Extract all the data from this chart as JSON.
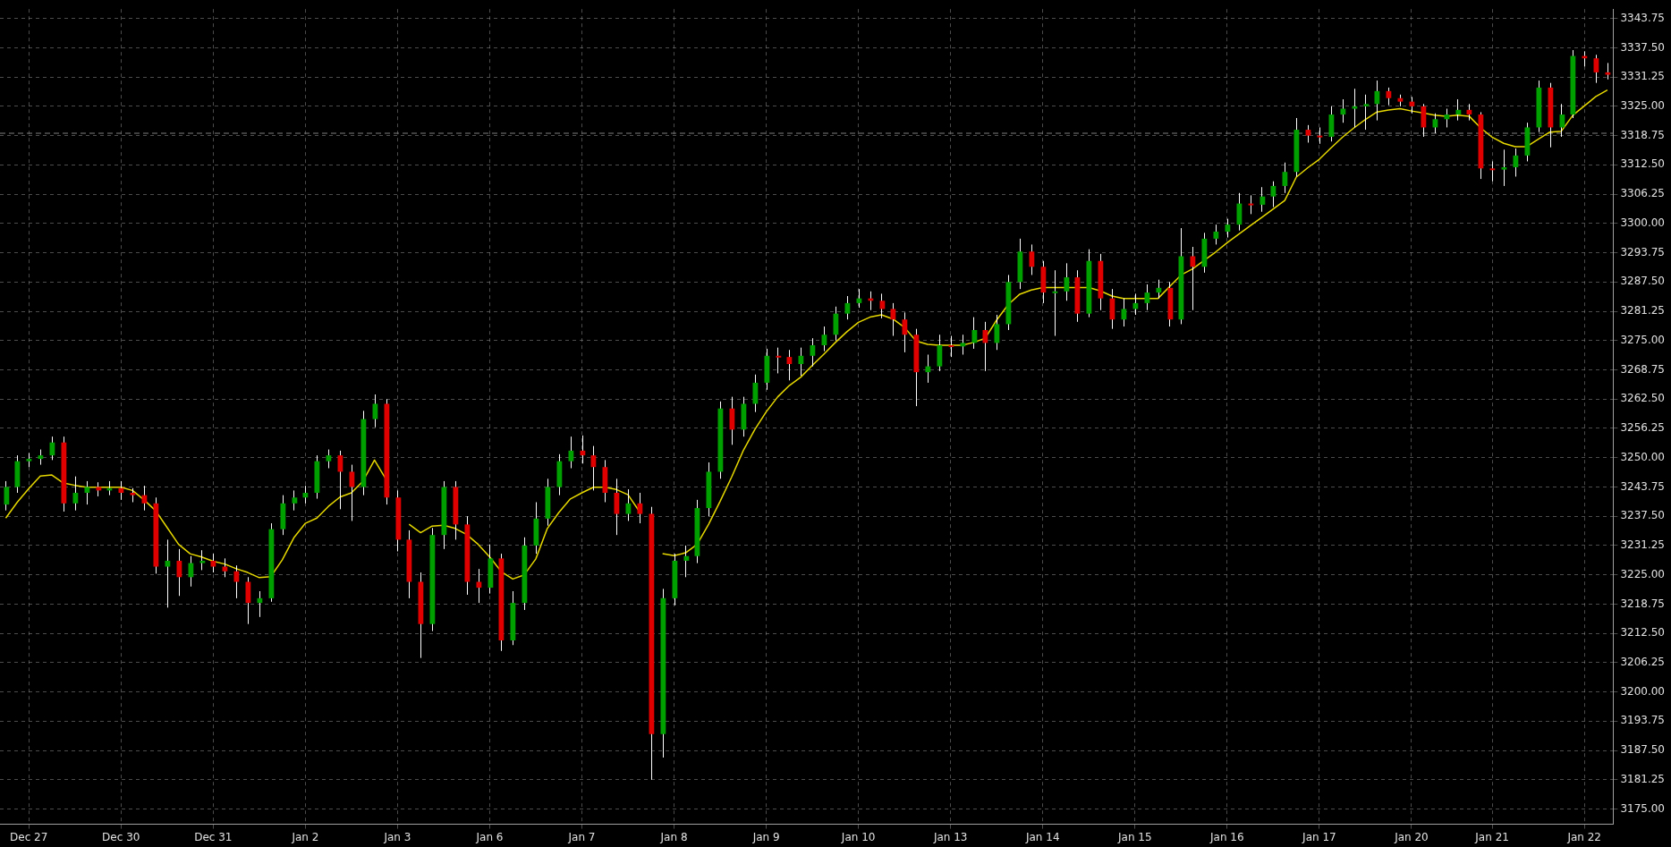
{
  "chart_data": {
    "type": "candlestick",
    "categories": [
      null,
      null,
      "Dec 27",
      null,
      null,
      null,
      null,
      null,
      null,
      null,
      "Dec 30",
      null,
      null,
      null,
      null,
      null,
      null,
      null,
      "Dec 31",
      null,
      null,
      null,
      null,
      null,
      null,
      null,
      "Jan 2",
      null,
      null,
      null,
      null,
      null,
      null,
      null,
      "Jan 3",
      null,
      null,
      null,
      null,
      null,
      null,
      null,
      "Jan 6",
      null,
      null,
      null,
      null,
      null,
      null,
      null,
      "Jan 7",
      null,
      null,
      null,
      null,
      null,
      null,
      null,
      "Jan 8",
      null,
      null,
      null,
      null,
      null,
      null,
      null,
      "Jan 9",
      null,
      null,
      null,
      null,
      null,
      null,
      null,
      "Jan 10",
      null,
      null,
      null,
      null,
      null,
      null,
      null,
      "Jan 13",
      null,
      null,
      null,
      null,
      null,
      null,
      null,
      "Jan 14",
      null,
      null,
      null,
      null,
      null,
      null,
      null,
      "Jan 15",
      null,
      null,
      null,
      null,
      null,
      null,
      null,
      "Jan 16",
      null,
      null,
      null,
      null,
      null,
      null,
      null,
      "Jan 17",
      null,
      null,
      null,
      null,
      null,
      null,
      null,
      "Jan 20",
      null,
      null,
      null,
      null,
      null,
      null,
      "Jan 21",
      null,
      null,
      null,
      null,
      null,
      null,
      null,
      "Jan 22",
      null,
      null
    ],
    "ohlc": [
      [
        3240,
        3245,
        3238.75,
        3243.75
      ],
      [
        3243.75,
        3250.5,
        3242.5,
        3249.25
      ],
      [
        3249.25,
        3251,
        3248,
        3249.75
      ],
      [
        3249.75,
        3251.75,
        3248.5,
        3250.5
      ],
      [
        3250.5,
        3254.5,
        3249.5,
        3253.25
      ],
      [
        3253.25,
        3254.5,
        3238.5,
        3240.25
      ],
      [
        3240.25,
        3246,
        3238.75,
        3242.5
      ],
      [
        3242.5,
        3245,
        3240,
        3243.75
      ],
      [
        3243.75,
        3244.75,
        3241.75,
        3243
      ],
      [
        3243,
        3245,
        3242,
        3243.5
      ],
      [
        3243.5,
        3245,
        3241,
        3242.5
      ],
      [
        3242.5,
        3243.5,
        3240.5,
        3242
      ],
      [
        3242,
        3244,
        3238.75,
        3240.25
      ],
      [
        3240.25,
        3241.5,
        3225.25,
        3226.75
      ],
      [
        3226.75,
        3232.5,
        3218,
        3228
      ],
      [
        3228,
        3230.5,
        3220.5,
        3224.5
      ],
      [
        3224.5,
        3229,
        3222.5,
        3227.5
      ],
      [
        3227.5,
        3230.25,
        3226,
        3228
      ],
      [
        3228,
        3229.5,
        3225.5,
        3226.75
      ],
      [
        3226.75,
        3228.5,
        3224.5,
        3225.75
      ],
      [
        3225.75,
        3227,
        3220,
        3223.5
      ],
      [
        3223.5,
        3224.5,
        3214.5,
        3219
      ],
      [
        3219,
        3221.5,
        3216,
        3220
      ],
      [
        3220,
        3236,
        3219.25,
        3234.75
      ],
      [
        3234.75,
        3242,
        3233.5,
        3240.25
      ],
      [
        3240.25,
        3243,
        3238.75,
        3241.5
      ],
      [
        3241.5,
        3244,
        3240.25,
        3242.5
      ],
      [
        3242.5,
        3250.5,
        3241.25,
        3249.25
      ],
      [
        3249.25,
        3251.75,
        3247.75,
        3250.5
      ],
      [
        3250.5,
        3251.5,
        3239,
        3247
      ],
      [
        3247,
        3248.5,
        3236.5,
        3243.75
      ],
      [
        3243.75,
        3260,
        3242,
        3258.25
      ],
      [
        3258.25,
        3263.5,
        3256.5,
        3261.5
      ],
      [
        3261.5,
        3262.5,
        3240,
        3241.5
      ],
      [
        3241.5,
        3243,
        3230,
        3232.5
      ],
      [
        3232.5,
        3234.5,
        3220,
        3223.5
      ],
      [
        3223.5,
        3225.5,
        3207.25,
        3214.5
      ],
      [
        3214.5,
        3235,
        3213,
        3233.5
      ],
      [
        3233.5,
        3245,
        3230.5,
        3243.75
      ],
      [
        3243.75,
        3245,
        3232.5,
        3235.75
      ],
      [
        3235.75,
        3237.5,
        3220.75,
        3223.5
      ],
      [
        3223.5,
        3226.25,
        3219,
        3222.25
      ],
      [
        3222.25,
        3231.5,
        3221,
        3228.5
      ],
      [
        3228.5,
        3229.5,
        3208.75,
        3211
      ],
      [
        3211,
        3221.5,
        3210,
        3219
      ],
      [
        3219,
        3233,
        3217.5,
        3231.25
      ],
      [
        3231.25,
        3240.5,
        3229.5,
        3237
      ],
      [
        3237,
        3245.5,
        3235.5,
        3243.75
      ],
      [
        3243.75,
        3250.75,
        3242,
        3249.25
      ],
      [
        3249.25,
        3254.5,
        3247.75,
        3251.5
      ],
      [
        3251.5,
        3254.75,
        3248.75,
        3250.5
      ],
      [
        3250.5,
        3252.5,
        3243,
        3248
      ],
      [
        3248,
        3249.5,
        3240.5,
        3242.5
      ],
      [
        3242.5,
        3245.5,
        3233.5,
        3238
      ],
      [
        3238,
        3243.25,
        3236.5,
        3240.25
      ],
      [
        3240.25,
        3242.5,
        3236,
        3238
      ],
      [
        3238,
        3239.5,
        3181.25,
        3191
      ],
      [
        3191,
        3222,
        3186,
        3220
      ],
      [
        3220,
        3229.5,
        3218.5,
        3228
      ],
      [
        3228,
        3231.25,
        3224.5,
        3229
      ],
      [
        3229,
        3241,
        3227.5,
        3239.25
      ],
      [
        3239.25,
        3249,
        3237.5,
        3247
      ],
      [
        3247,
        3262,
        3245.5,
        3260.5
      ],
      [
        3260.5,
        3263,
        3252.75,
        3256
      ],
      [
        3256,
        3263,
        3254.5,
        3261.5
      ],
      [
        3261.5,
        3267.75,
        3259.75,
        3266
      ],
      [
        3266,
        3273.25,
        3264.5,
        3271.75
      ],
      [
        3271.75,
        3273.5,
        3268,
        3271.5
      ],
      [
        3271.5,
        3273,
        3266.5,
        3270
      ],
      [
        3270,
        3273.5,
        3267.5,
        3271.75
      ],
      [
        3271.75,
        3275.5,
        3269.5,
        3274
      ],
      [
        3274,
        3278,
        3272.75,
        3276.25
      ],
      [
        3276.25,
        3282.25,
        3275,
        3280.75
      ],
      [
        3280.75,
        3284.5,
        3279.5,
        3283
      ],
      [
        3283,
        3286,
        3282,
        3284
      ],
      [
        3284,
        3285.5,
        3281.5,
        3283.5
      ],
      [
        3283.5,
        3285,
        3279.75,
        3281.75
      ],
      [
        3281.75,
        3283,
        3276,
        3279.5
      ],
      [
        3279.5,
        3281,
        3272.5,
        3276.25
      ],
      [
        3276.25,
        3277.5,
        3261,
        3268.25
      ],
      [
        3268.25,
        3272,
        3266,
        3269.5
      ],
      [
        3269.5,
        3276.25,
        3268.5,
        3274
      ],
      [
        3274,
        3276,
        3271.5,
        3273.75
      ],
      [
        3273.75,
        3276.25,
        3272,
        3274.5
      ],
      [
        3274.5,
        3280,
        3273.25,
        3277.25
      ],
      [
        3277.25,
        3279,
        3268.5,
        3274.5
      ],
      [
        3274.5,
        3280.5,
        3273,
        3278.5
      ],
      [
        3278.5,
        3289,
        3277.25,
        3287.5
      ],
      [
        3287.5,
        3296.75,
        3286,
        3294
      ],
      [
        3294,
        3295.5,
        3289,
        3290.75
      ],
      [
        3290.75,
        3292,
        3283,
        3285.25
      ],
      [
        3285.25,
        3290,
        3276,
        3285.5
      ],
      [
        3285.5,
        3291.5,
        3283.5,
        3288.5
      ],
      [
        3288.5,
        3290,
        3279,
        3280.75
      ],
      [
        3280.75,
        3294.5,
        3280,
        3292
      ],
      [
        3292,
        3293.5,
        3281.5,
        3284
      ],
      [
        3284,
        3286,
        3277.5,
        3279.5
      ],
      [
        3279.5,
        3284,
        3278,
        3281.75
      ],
      [
        3281.75,
        3285,
        3280.5,
        3283
      ],
      [
        3283,
        3287,
        3281.5,
        3285.25
      ],
      [
        3285.25,
        3288,
        3284,
        3286.25
      ],
      [
        3286.25,
        3287.5,
        3278,
        3279.5
      ],
      [
        3279.5,
        3299,
        3278.5,
        3293
      ],
      [
        3293,
        3295,
        3281.5,
        3290.75
      ],
      [
        3290.75,
        3298,
        3289.5,
        3296.75
      ],
      [
        3296.75,
        3299.75,
        3295.5,
        3298.25
      ],
      [
        3298.25,
        3301,
        3297,
        3299.75
      ],
      [
        3299.75,
        3306.5,
        3298.5,
        3304.25
      ],
      [
        3304.25,
        3306,
        3302,
        3304
      ],
      [
        3304,
        3307.75,
        3302.5,
        3305.75
      ],
      [
        3305.75,
        3309,
        3303.5,
        3308
      ],
      [
        3308,
        3313,
        3306.5,
        3311
      ],
      [
        3311,
        3322.5,
        3310,
        3320
      ],
      [
        3320,
        3321,
        3317.25,
        3318.75
      ],
      [
        3318.75,
        3320.5,
        3317,
        3318.5
      ],
      [
        3318.5,
        3325,
        3317.5,
        3323.25
      ],
      [
        3323.25,
        3326.5,
        3321.5,
        3324.5
      ],
      [
        3324.5,
        3328.75,
        3320.5,
        3325
      ],
      [
        3325,
        3327.5,
        3320,
        3325.5
      ],
      [
        3325.5,
        3330.5,
        3322,
        3328.25
      ],
      [
        3328.25,
        3329,
        3325.25,
        3326.75
      ],
      [
        3326.75,
        3327.5,
        3325,
        3326
      ],
      [
        3326,
        3327,
        3323.5,
        3325
      ],
      [
        3325,
        3325.5,
        3318.5,
        3320.5
      ],
      [
        3320.5,
        3323.5,
        3319.25,
        3322.25
      ],
      [
        3322.25,
        3324.5,
        3320.5,
        3323.25
      ],
      [
        3323.25,
        3326.5,
        3322,
        3324.25
      ],
      [
        3324.25,
        3325.5,
        3322,
        3323.25
      ],
      [
        3323.25,
        3323.75,
        3309.5,
        3311.75
      ],
      [
        3311.75,
        3313.25,
        3309,
        3311.5
      ],
      [
        3311.5,
        3315.75,
        3308,
        3312
      ],
      [
        3312,
        3316,
        3310,
        3314.5
      ],
      [
        3314.5,
        3321.5,
        3313.25,
        3320.5
      ],
      [
        3320.5,
        3330.5,
        3319.5,
        3329
      ],
      [
        3329,
        3330,
        3316.25,
        3320.5
      ],
      [
        3320.5,
        3325.5,
        3318.5,
        3323.25
      ],
      [
        3323.25,
        3337,
        3322.5,
        3335.75
      ],
      [
        3335.75,
        3336.75,
        3333.5,
        3335.25
      ],
      [
        3335.25,
        3336,
        3330,
        3332.25
      ],
      [
        3332.25,
        3334.25,
        3330.75,
        3331.75
      ]
    ],
    "colors": [
      "#00a000",
      "#00a000",
      "#00a000",
      "#00a000",
      "#00a000",
      "#e00000",
      "#00a000",
      "#00a000",
      "#e00000",
      "#00a000",
      "#e00000",
      "#e00000",
      "#e00000",
      "#e00000",
      "#00a000",
      "#e00000",
      "#00a000",
      "#00a000",
      "#e00000",
      "#e00000",
      "#e00000",
      "#e00000",
      "#00a000",
      "#00a000",
      "#00a000",
      "#00a000",
      "#00a000",
      "#00a000",
      "#00a000",
      "#e00000",
      "#e00000",
      "#00a000",
      "#00a000",
      "#e00000",
      "#e00000",
      "#e00000",
      "#e00000",
      "#00a000",
      "#00a000",
      "#e00000",
      "#e00000",
      "#e00000",
      "#00a000",
      "#e00000",
      "#00a000",
      "#00a000",
      "#00a000",
      "#00a000",
      "#00a000",
      "#00a000",
      "#e00000",
      "#e00000",
      "#e00000",
      "#e00000",
      "#00a000",
      "#e00000",
      "#e00000",
      "#00a000",
      "#00a000",
      "#00a000",
      "#00a000",
      "#00a000",
      "#00a000",
      "#e00000",
      "#00a000",
      "#00a000",
      "#00a000",
      "#e00000",
      "#e00000",
      "#00a000",
      "#00a000",
      "#00a000",
      "#00a000",
      "#00a000",
      "#00a000",
      "#e00000",
      "#e00000",
      "#e00000",
      "#e00000",
      "#e00000",
      "#00a000",
      "#00a000",
      "#e00000",
      "#00a000",
      "#00a000",
      "#e00000",
      "#00a000",
      "#00a000",
      "#00a000",
      "#e00000",
      "#e00000",
      "#00a000",
      "#00a000",
      "#e00000",
      "#00a000",
      "#e00000",
      "#e00000",
      "#00a000",
      "#00a000",
      "#00a000",
      "#00a000",
      "#e00000",
      "#00a000",
      "#e00000",
      "#00a000",
      "#00a000",
      "#00a000",
      "#00a000",
      "#e00000",
      "#00a000",
      "#00a000",
      "#00a000",
      "#00a000",
      "#e00000",
      "#e00000",
      "#00a000",
      "#00a000",
      "#00a000",
      "#00a000",
      "#00a000",
      "#e00000",
      "#e00000",
      "#e00000",
      "#e00000",
      "#00a000",
      "#00a000",
      "#00a000",
      "#e00000",
      "#e00000",
      "#e00000",
      "#00a000",
      "#00a000",
      "#00a000",
      "#00a000",
      "#e00000",
      "#00a000",
      "#00a000",
      "#e00000",
      "#e00000",
      "#e00000"
    ],
    "series": [
      {
        "type": "line",
        "color": "#e6d800",
        "values": [
          3237.1,
          3240.5,
          3243.4,
          3246.1,
          3246.3,
          3244.6,
          3244.1,
          3243.7,
          3243.7,
          3243.7,
          3243.7,
          3243,
          3241,
          3238.7,
          3235.1,
          3231.5,
          3229.5,
          3228.8,
          3227.9,
          3227.3,
          3226.3,
          3225.5,
          3224.4,
          3224.6,
          3228.2,
          3232.9,
          3236,
          3237.1,
          3239.6,
          3241.6,
          3242.5,
          3245,
          3249.5,
          3245.4,
          null,
          3235.8,
          3234,
          3235.4,
          3235.6,
          3234.9,
          3233.6,
          3231.5,
          3228.8,
          3225.7,
          3224.1,
          3225,
          3228.4,
          3234.9,
          3238.3,
          3241.2,
          3242.5,
          3243.7,
          3243.7,
          3243.2,
          3242.1,
          3238.5,
          null,
          3229.5,
          3229.1,
          3229.7,
          3231.5,
          3235.8,
          3240.7,
          3245.9,
          3251.5,
          3256,
          3259.8,
          3263,
          3265.4,
          3267.2,
          3269.7,
          3272.1,
          3274.6,
          3276.9,
          3278.9,
          3280,
          3280.5,
          3279.6,
          3277.8,
          3274.9,
          3274.2,
          3274,
          3274,
          3274,
          3274.6,
          3275.5,
          3279.4,
          3282.7,
          3284.9,
          3285.8,
          3286.3,
          3286.3,
          3286.3,
          3286.3,
          3286.3,
          3285.6,
          3284.5,
          3284,
          3284,
          3284,
          3284,
          3286.5,
          3289,
          3290.3,
          3292.1,
          3293.9,
          3295.9,
          3297.7,
          3299.5,
          3301.3,
          3303.1,
          3304.9,
          3309.9,
          3311.9,
          3313.7,
          3316.1,
          3318.4,
          3320.4,
          3322.2,
          3323.8,
          3324.2,
          3324.5,
          3324,
          3323.6,
          3323.1,
          3322.9,
          3323.1,
          3322.9,
          3320.4,
          3318.4,
          3317.1,
          3316.4,
          3316.4,
          3318,
          3319.5,
          3319.7,
          3323.1,
          3325.1,
          3327.1,
          3328.5
        ]
      }
    ],
    "ylim": [
      3171.75,
      3345.75
    ],
    "yticks": [
      {
        "value": 3175,
        "label": "3175.00"
      },
      {
        "value": 3181.25,
        "label": "3181.25"
      },
      {
        "value": 3187.5,
        "label": "3187.50"
      },
      {
        "value": 3193.75,
        "label": "3193.75"
      },
      {
        "value": 3200,
        "label": "3200.00"
      },
      {
        "value": 3206.25,
        "label": "3206.25"
      },
      {
        "value": 3212.5,
        "label": "3212.50"
      },
      {
        "value": 3218.75,
        "label": "3218.75"
      },
      {
        "value": 3225,
        "label": "3225.00"
      },
      {
        "value": 3231.25,
        "label": "3231.25"
      },
      {
        "value": 3237.5,
        "label": "3237.50"
      },
      {
        "value": 3243.75,
        "label": "3243.75"
      },
      {
        "value": 3250,
        "label": "3250.00"
      },
      {
        "value": 3256.25,
        "label": "3256.25"
      },
      {
        "value": 3262.5,
        "label": "3262.50"
      },
      {
        "value": 3268.75,
        "label": "3268.75"
      },
      {
        "value": 3275,
        "label": "3275.00"
      },
      {
        "value": 3281.25,
        "label": "3281.25"
      },
      {
        "value": 3287.5,
        "label": "3287.50"
      },
      {
        "value": 3293.75,
        "label": "3293.75"
      },
      {
        "value": 3300,
        "label": "3300.00"
      },
      {
        "value": 3306.25,
        "label": "3306.25"
      },
      {
        "value": 3312.5,
        "label": "3312.50"
      },
      {
        "value": 3318.75,
        "label": "3318.75"
      },
      {
        "value": 3325,
        "label": "3325.00"
      },
      {
        "value": 3331.25,
        "label": "3331.25"
      },
      {
        "value": 3337.5,
        "label": "3337.50"
      },
      {
        "value": 3343.75,
        "label": "3343.75"
      }
    ],
    "ref_lines": [
      {
        "axis": "y",
        "value": 3319.25,
        "color": "#808080",
        "line_style": "dashed"
      }
    ],
    "grid": true,
    "line_style": "solid",
    "marker": "none"
  }
}
